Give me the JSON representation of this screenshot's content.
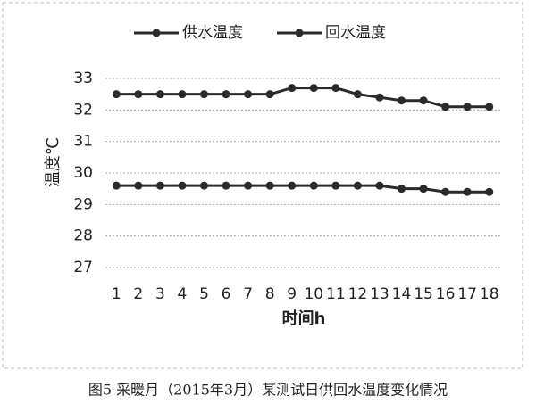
{
  "chart_data": {
    "type": "line",
    "x_label": "时间h",
    "y_label": "温度℃",
    "categories": [
      "1",
      "2",
      "3",
      "4",
      "5",
      "6",
      "7",
      "8",
      "9",
      "10",
      "11",
      "12",
      "13",
      "14",
      "15",
      "16",
      "17",
      "18"
    ],
    "series": [
      {
        "name": "供水温度",
        "color": "#2a2a2a",
        "values": [
          32.5,
          32.5,
          32.5,
          32.5,
          32.5,
          32.5,
          32.5,
          32.5,
          32.7,
          32.7,
          32.7,
          32.5,
          32.4,
          32.3,
          32.3,
          32.1,
          32.1,
          32.1
        ]
      },
      {
        "name": "回水温度",
        "color": "#2a2a2a",
        "values": [
          29.6,
          29.6,
          29.6,
          29.6,
          29.6,
          29.6,
          29.6,
          29.6,
          29.6,
          29.6,
          29.6,
          29.6,
          29.6,
          29.5,
          29.5,
          29.4,
          29.4,
          29.4
        ]
      }
    ],
    "ylim": [
      27,
      33
    ],
    "yticks": [
      27,
      28,
      29,
      30,
      31,
      32,
      33
    ],
    "grid": true,
    "legend": "top",
    "caption": "图5 采暖月（2015年3月）某测试日供回水温度变化情况"
  }
}
